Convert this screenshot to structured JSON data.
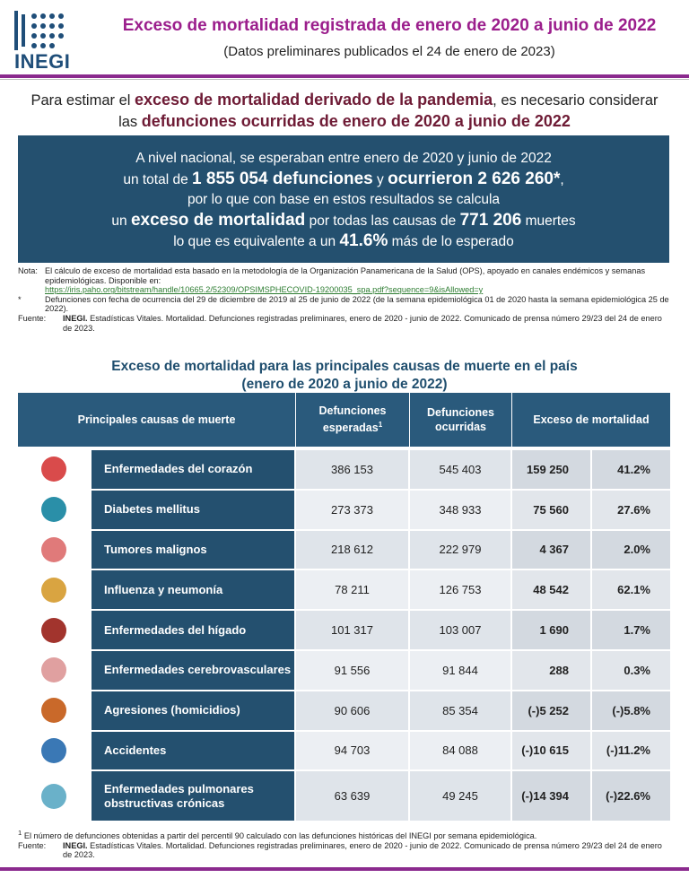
{
  "header": {
    "logo": "INEGI",
    "title": "Exceso de mortalidad registrada de enero de 2020 a junio de 2022",
    "subtitle": "(Datos preliminares publicados el 24 de enero de 2023)"
  },
  "intro": {
    "lines": [
      [
        {
          "text": "Para estimar el ",
          "emphasis": false
        },
        {
          "text": "exceso de mortalidad derivado de la pandemia",
          "emphasis": true
        },
        {
          "text": ", es necesario considerar",
          "emphasis": false
        }
      ],
      [
        {
          "text": "las ",
          "emphasis": false
        },
        {
          "text": "defunciones ocurridas de enero de 2020 a junio de 2022",
          "emphasis": true
        }
      ]
    ]
  },
  "box": {
    "lines": [
      [
        {
          "text": "A nivel nacional, se esperaban entre enero de 2020 y junio de 2022",
          "bold": false
        }
      ],
      [
        {
          "text": "un total de ",
          "bold": false
        },
        {
          "text": "1 855 054 defunciones",
          "bold": true
        },
        {
          "text": " y ",
          "bold": false
        },
        {
          "text": "ocurrieron 2 626 260*",
          "bold": true
        },
        {
          "text": ",",
          "bold": false
        }
      ],
      [
        {
          "text": "por lo que con base en estos resultados se calcula",
          "bold": false
        }
      ],
      [
        {
          "text": "un ",
          "bold": false
        },
        {
          "text": "exceso de mortalidad",
          "bold": true
        },
        {
          "text": " por todas las causas de ",
          "bold": false
        },
        {
          "text": "771 206",
          "bold": true
        },
        {
          "text": " muertes",
          "bold": false
        }
      ],
      [
        {
          "text": "lo que es equivalente a un ",
          "bold": false
        },
        {
          "text": "41.6%",
          "bold": true
        },
        {
          "text": " más de lo esperado",
          "bold": false
        }
      ]
    ]
  },
  "notes": [
    {
      "label": "Nota:",
      "text": "El cálculo de exceso de mortalidad esta basado en la metodología de la Organización Panamericana de la Salud (OPS), apoyado en canales endémicos y semanas epidemiológicas. Disponible en:",
      "link": "https://iris.paho.org/bitstream/handle/10665.2/52309/OPSIMSPHECOVID-19200035_spa.pdf?sequence=9&isAllowed=y"
    },
    {
      "label": "*",
      "text": "Defunciones con fecha de ocurrencia del 29 de diciembre de 2019 al 25 de junio de 2022 (de la semana epidemiológica 01 de 2020 hasta la semana epidemiológica 25 de 2022)."
    },
    {
      "label": "Fuente:",
      "strong": "INEGI.",
      "text": "Estadísticas Vitales. Mortalidad. Defunciones registradas preliminares, enero de 2020 - junio de 2022. Comunicado de prensa número 29/23 del 24 de enero de 2023."
    }
  ],
  "table": {
    "title": [
      "Exceso de mortalidad para las principales causas de muerte en el país",
      "(enero de 2020 a junio de 2022)"
    ],
    "headers": {
      "cause": "Principales causas de muerte",
      "expected": "Defunciones esperadas",
      "expected_mark": "1",
      "observed": "Defunciones ocurridas",
      "excess": "Exceso de mortalidad"
    },
    "rows": [
      {
        "cause": "Enfermedades del corazón",
        "expected": "386 153",
        "observed": "545 403",
        "excess": "159 250",
        "percent": "41.2%"
      },
      {
        "cause": "Diabetes mellitus",
        "expected": "273 373",
        "observed": "348 933",
        "excess": "75 560",
        "percent": "27.6%"
      },
      {
        "cause": "Tumores malignos",
        "expected": "218 612",
        "observed": "222 979",
        "excess": "4 367",
        "percent": "2.0%"
      },
      {
        "cause": "Influenza y neumonía",
        "expected": "78 211",
        "observed": "126 753",
        "excess": "48 542",
        "percent": "62.1%"
      },
      {
        "cause": "Enfermedades del hígado",
        "expected": "101 317",
        "observed": "103 007",
        "excess": "1 690",
        "percent": "1.7%"
      },
      {
        "cause": "Enfermedades cerebrovasculares",
        "expected": "91 556",
        "observed": "91 844",
        "excess": "288",
        "percent": "0.3%"
      },
      {
        "cause": "Agresiones (homicidios)",
        "expected": "90 606",
        "observed": "85 354",
        "excess": "(-)5 252",
        "percent": "(-)5.8%"
      },
      {
        "cause": "Accidentes",
        "expected": "94 703",
        "observed": "84 088",
        "excess": "(-)10 615",
        "percent": "(-)11.2%"
      },
      {
        "cause": "Enfermedades pulmonares obstructivas crónicas",
        "expected": "63 639",
        "observed": "49 245",
        "excess": "(-)14 394",
        "percent": "(-)22.6%"
      }
    ]
  },
  "footer": {
    "footnote_mark": "1",
    "footnote": "El número de defunciones obtenidas a partir del percentil 90 calculado con las defunciones históricas del INEGI por semana epidemiológica.",
    "source_label": "Fuente:",
    "source_strong": "INEGI.",
    "source": "Estadísticas Vitales. Mortalidad. Defunciones registradas preliminares, enero de 2020 - junio de 2022. Comunicado de prensa número 29/23 del 24 de enero de 2023."
  }
}
